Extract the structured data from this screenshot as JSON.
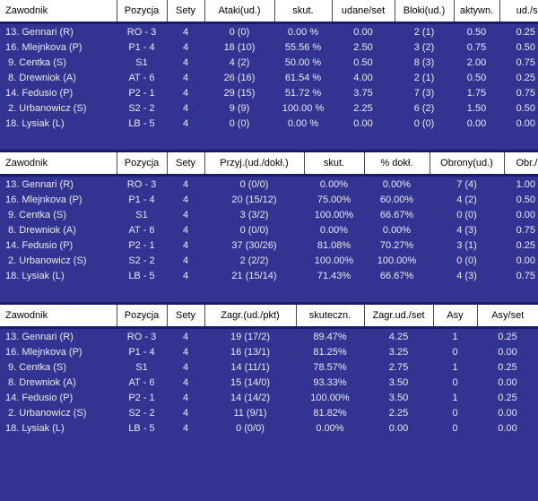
{
  "colors": {
    "body_bg": "#333391",
    "header_bg": "#ffffff",
    "header_text": "#000000",
    "separator_line": "#1b1b6e",
    "row_text": "#eaeaf2"
  },
  "tables": [
    {
      "id": "attack-block",
      "headers": [
        "Zawodnik",
        "Pozycja",
        "Sety",
        "Ataki(ud.)",
        "skut.",
        "udane/set",
        "Bloki(ud.)",
        "aktywn.",
        "ud./set"
      ],
      "rows": [
        [
          "13. Gennari (R)",
          "RO - 3",
          "4",
          "0 (0)",
          "0.00 %",
          "0.00",
          "2 (1)",
          "0.50",
          "0.25"
        ],
        [
          "16. Mlejnkova (P)",
          "P1 - 4",
          "4",
          "18 (10)",
          "55.56 %",
          "2.50",
          "3 (2)",
          "0.75",
          "0.50"
        ],
        [
          " 9. Centka (S)",
          "S1",
          "4",
          "4 (2)",
          "50.00 %",
          "0.50",
          "8 (3)",
          "2.00",
          "0.75"
        ],
        [
          " 8. Drewniok (A)",
          "AT - 6",
          "4",
          "26 (16)",
          "61.54 %",
          "4.00",
          "2 (1)",
          "0.50",
          "0.25"
        ],
        [
          "14. Fedusio (P)",
          "P2 - 1",
          "4",
          "29 (15)",
          "51.72 %",
          "3.75",
          "7 (3)",
          "1.75",
          "0.75"
        ],
        [
          " 2. Urbanowicz (S)",
          "S2 - 2",
          "4",
          "9 (9)",
          "100.00 %",
          "2.25",
          "6 (2)",
          "1.50",
          "0.50"
        ],
        [
          "18. Lysiak (L)",
          "LB - 5",
          "4",
          "0 (0)",
          "0.00 %",
          "0.00",
          "0 (0)",
          "0.00",
          "0.00"
        ]
      ]
    },
    {
      "id": "reception-defense",
      "headers": [
        "Zawodnik",
        "Pozycja",
        "Sety",
        "Przyj.(ud./dokł.)",
        "skut.",
        "% dokł.",
        "Obrony(ud.)",
        "Obr./set"
      ],
      "rows": [
        [
          "13. Gennari (R)",
          "RO - 3",
          "4",
          "0 (0/0)",
          "0.00%",
          "0.00%",
          "7 (4)",
          "1.00"
        ],
        [
          "16. Mlejnkova (P)",
          "P1 - 4",
          "4",
          "20 (15/12)",
          "75.00%",
          "60.00%",
          "4 (2)",
          "0.50"
        ],
        [
          " 9. Centka (S)",
          "S1",
          "4",
          "3 (3/2)",
          "100.00%",
          "66.67%",
          "0 (0)",
          "0.00"
        ],
        [
          " 8. Drewniok (A)",
          "AT - 6",
          "4",
          "0 (0/0)",
          "0.00%",
          "0.00%",
          "4 (3)",
          "0.75"
        ],
        [
          "14. Fedusio (P)",
          "P2 - 1",
          "4",
          "37 (30/26)",
          "81.08%",
          "70.27%",
          "3 (1)",
          "0.25"
        ],
        [
          " 2. Urbanowicz (S)",
          "S2 - 2",
          "4",
          "2 (2/2)",
          "100.00%",
          "100.00%",
          "0 (0)",
          "0.00"
        ],
        [
          "18. Lysiak (L)",
          "LB - 5",
          "4",
          "21 (15/14)",
          "71.43%",
          "66.67%",
          "4 (3)",
          "0.75"
        ]
      ]
    },
    {
      "id": "serve",
      "headers": [
        "Zawodnik",
        "Pozycja",
        "Sety",
        "Zagr.(ud./pkt)",
        "skuteczn.",
        "Zagr.ud./set",
        "Asy",
        "Asy/set"
      ],
      "rows": [
        [
          "13. Gennari (R)",
          "RO - 3",
          "4",
          "19 (17/2)",
          "89.47%",
          "4.25",
          "1",
          "0.25"
        ],
        [
          "16. Mlejnkova (P)",
          "P1 - 4",
          "4",
          "16 (13/1)",
          "81.25%",
          "3.25",
          "0",
          "0.00"
        ],
        [
          " 9. Centka (S)",
          "S1",
          "4",
          "14 (11/1)",
          "78.57%",
          "2.75",
          "1",
          "0.25"
        ],
        [
          " 8. Drewniok (A)",
          "AT - 6",
          "4",
          "15 (14/0)",
          "93.33%",
          "3.50",
          "0",
          "0.00"
        ],
        [
          "14. Fedusio (P)",
          "P2 - 1",
          "4",
          "14 (14/2)",
          "100.00%",
          "3.50",
          "1",
          "0.25"
        ],
        [
          " 2. Urbanowicz (S)",
          "S2 - 2",
          "4",
          "11 (9/1)",
          "81.82%",
          "2.25",
          "0",
          "0.00"
        ],
        [
          "18. Lysiak (L)",
          "LB - 5",
          "4",
          "0 (0/0)",
          "0.00%",
          "0.00",
          "0",
          "0.00"
        ]
      ]
    }
  ]
}
